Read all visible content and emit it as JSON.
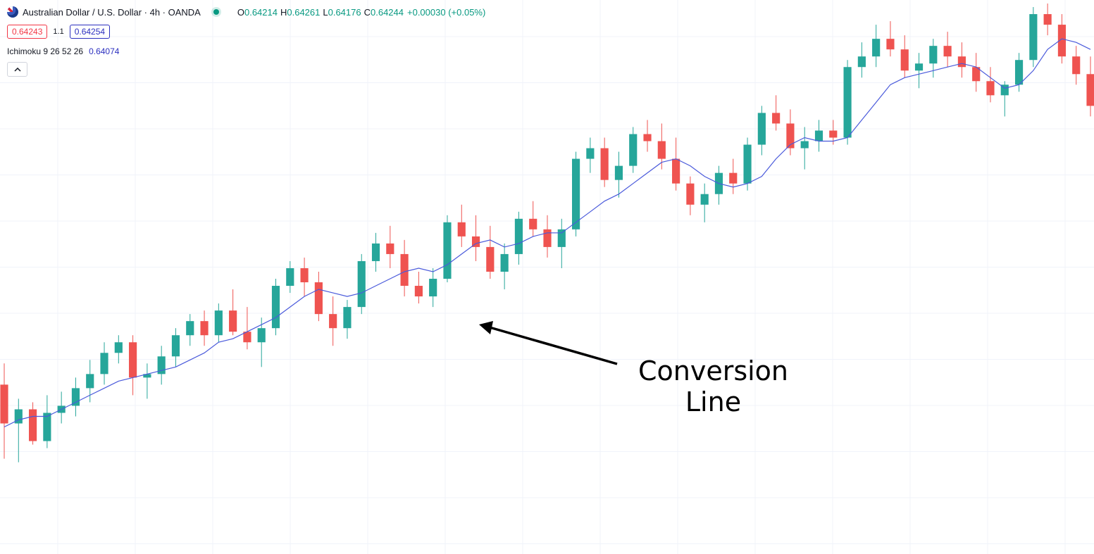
{
  "legend": {
    "symbol": "Australian Dollar / U.S. Dollar · 4h · OANDA",
    "o_label": "O",
    "o_value": "0.64214",
    "h_label": "H",
    "h_value": "0.64261",
    "l_label": "L",
    "l_value": "0.64176",
    "c_label": "C",
    "c_value": "0.64244",
    "change": "+0.00030 (+0.05%)",
    "bid": "0.64243",
    "spread": "1.1",
    "ask": "0.64254",
    "indicator": "Ichimoku 9 26 52 26",
    "indicator_value": "0.64074"
  },
  "annotation": {
    "line1": "Conversion",
    "line2": "Line"
  },
  "colors": {
    "up": "#26a69a",
    "down": "#ef5350",
    "conversion": "#4a5adb",
    "grid": "#f0f3fa"
  },
  "chart_data": {
    "type": "candlestick",
    "price_range": [
      0.6331,
      0.6488
    ],
    "candles": [
      [
        0.6379,
        0.6385,
        0.6358,
        0.6368
      ],
      [
        0.6368,
        0.6375,
        0.6357,
        0.6372
      ],
      [
        0.6372,
        0.6374,
        0.6362,
        0.6363
      ],
      [
        0.6363,
        0.6376,
        0.6361,
        0.6371
      ],
      [
        0.6371,
        0.6377,
        0.6368,
        0.6373
      ],
      [
        0.6373,
        0.6381,
        0.637,
        0.6378
      ],
      [
        0.6378,
        0.6386,
        0.6374,
        0.6382
      ],
      [
        0.6382,
        0.6391,
        0.6379,
        0.6388
      ],
      [
        0.6388,
        0.6393,
        0.6385,
        0.6391
      ],
      [
        0.6391,
        0.6393,
        0.6376,
        0.6381
      ],
      [
        0.6381,
        0.6385,
        0.6375,
        0.6382
      ],
      [
        0.6382,
        0.639,
        0.6379,
        0.6387
      ],
      [
        0.6387,
        0.6395,
        0.6384,
        0.6393
      ],
      [
        0.6393,
        0.6399,
        0.639,
        0.6397
      ],
      [
        0.6397,
        0.64,
        0.639,
        0.6393
      ],
      [
        0.6393,
        0.6402,
        0.6391,
        0.64
      ],
      [
        0.64,
        0.6406,
        0.6393,
        0.6394
      ],
      [
        0.6394,
        0.6401,
        0.6389,
        0.6391
      ],
      [
        0.6391,
        0.6398,
        0.6384,
        0.6395
      ],
      [
        0.6395,
        0.6409,
        0.6393,
        0.6407
      ],
      [
        0.6407,
        0.6414,
        0.6405,
        0.6412
      ],
      [
        0.6412,
        0.6415,
        0.6404,
        0.6408
      ],
      [
        0.6408,
        0.6411,
        0.6397,
        0.6399
      ],
      [
        0.6399,
        0.6404,
        0.639,
        0.6395
      ],
      [
        0.6395,
        0.6403,
        0.6392,
        0.6401
      ],
      [
        0.6401,
        0.6416,
        0.6399,
        0.6414
      ],
      [
        0.6414,
        0.6422,
        0.6411,
        0.6419
      ],
      [
        0.6419,
        0.6424,
        0.6412,
        0.6416
      ],
      [
        0.6416,
        0.642,
        0.6404,
        0.6407
      ],
      [
        0.6407,
        0.6411,
        0.6402,
        0.6404
      ],
      [
        0.6404,
        0.6412,
        0.6401,
        0.6409
      ],
      [
        0.6409,
        0.6427,
        0.6408,
        0.6425
      ],
      [
        0.6425,
        0.643,
        0.6418,
        0.6421
      ],
      [
        0.6421,
        0.6427,
        0.6414,
        0.6418
      ],
      [
        0.6418,
        0.6424,
        0.6409,
        0.6411
      ],
      [
        0.6411,
        0.6419,
        0.6406,
        0.6416
      ],
      [
        0.6416,
        0.6428,
        0.6413,
        0.6426
      ],
      [
        0.6426,
        0.6431,
        0.6421,
        0.6423
      ],
      [
        0.6423,
        0.6427,
        0.6415,
        0.6418
      ],
      [
        0.6418,
        0.6426,
        0.6412,
        0.6423
      ],
      [
        0.6423,
        0.6445,
        0.6421,
        0.6443
      ],
      [
        0.6443,
        0.6449,
        0.6439,
        0.6446
      ],
      [
        0.6446,
        0.6449,
        0.6435,
        0.6437
      ],
      [
        0.6437,
        0.6445,
        0.6432,
        0.6441
      ],
      [
        0.6441,
        0.6452,
        0.6439,
        0.645
      ],
      [
        0.645,
        0.6454,
        0.6445,
        0.6448
      ],
      [
        0.6448,
        0.6453,
        0.644,
        0.6443
      ],
      [
        0.6443,
        0.6449,
        0.6434,
        0.6436
      ],
      [
        0.6436,
        0.6438,
        0.6427,
        0.643
      ],
      [
        0.643,
        0.6436,
        0.6425,
        0.6433
      ],
      [
        0.6433,
        0.6441,
        0.643,
        0.6439
      ],
      [
        0.6439,
        0.6443,
        0.6433,
        0.6436
      ],
      [
        0.6436,
        0.6449,
        0.6434,
        0.6447
      ],
      [
        0.6447,
        0.6458,
        0.6444,
        0.6456
      ],
      [
        0.6456,
        0.6461,
        0.6451,
        0.6453
      ],
      [
        0.6453,
        0.6457,
        0.6444,
        0.6446
      ],
      [
        0.6446,
        0.6452,
        0.644,
        0.6448
      ],
      [
        0.6448,
        0.6454,
        0.6445,
        0.6451
      ],
      [
        0.6451,
        0.6454,
        0.6447,
        0.6449
      ],
      [
        0.6449,
        0.6471,
        0.6447,
        0.6469
      ],
      [
        0.6469,
        0.6476,
        0.6466,
        0.6472
      ],
      [
        0.6472,
        0.6481,
        0.6469,
        0.6477
      ],
      [
        0.6477,
        0.6482,
        0.6472,
        0.6474
      ],
      [
        0.6474,
        0.6478,
        0.6466,
        0.6468
      ],
      [
        0.6468,
        0.6473,
        0.6463,
        0.647
      ],
      [
        0.647,
        0.6477,
        0.6466,
        0.6475
      ],
      [
        0.6475,
        0.6479,
        0.6469,
        0.6472
      ],
      [
        0.6472,
        0.6476,
        0.6466,
        0.6469
      ],
      [
        0.6469,
        0.6473,
        0.6462,
        0.6465
      ],
      [
        0.6465,
        0.6469,
        0.6459,
        0.6461
      ],
      [
        0.6461,
        0.6465,
        0.6455,
        0.6464
      ],
      [
        0.6464,
        0.6473,
        0.6462,
        0.6471
      ],
      [
        0.6471,
        0.6486,
        0.6469,
        0.6484
      ],
      [
        0.6484,
        0.6487,
        0.6478,
        0.6481
      ],
      [
        0.6481,
        0.6484,
        0.647,
        0.6472
      ],
      [
        0.6472,
        0.6475,
        0.6464,
        0.6467
      ],
      [
        0.6467,
        0.6472,
        0.6455,
        0.6458
      ]
    ],
    "conversion_line": [
      0.6367,
      0.6369,
      0.637,
      0.637,
      0.6372,
      0.6374,
      0.6376,
      0.6378,
      0.638,
      0.6381,
      0.6382,
      0.6383,
      0.6384,
      0.6386,
      0.6388,
      0.6391,
      0.6392,
      0.6394,
      0.6396,
      0.6398,
      0.6401,
      0.6404,
      0.6406,
      0.6405,
      0.6404,
      0.6405,
      0.6407,
      0.6409,
      0.6411,
      0.6412,
      0.6411,
      0.6413,
      0.6416,
      0.6419,
      0.642,
      0.6418,
      0.6419,
      0.6421,
      0.6422,
      0.6422,
      0.6425,
      0.6428,
      0.6431,
      0.6433,
      0.6436,
      0.6439,
      0.6442,
      0.6443,
      0.6441,
      0.6438,
      0.6436,
      0.6435,
      0.6436,
      0.6438,
      0.6443,
      0.6447,
      0.6449,
      0.6448,
      0.6448,
      0.6449,
      0.6454,
      0.6459,
      0.6464,
      0.6466,
      0.6467,
      0.6468,
      0.6469,
      0.647,
      0.6469,
      0.6466,
      0.6463,
      0.6464,
      0.6468,
      0.6474,
      0.6477,
      0.6476,
      0.6474
    ]
  }
}
